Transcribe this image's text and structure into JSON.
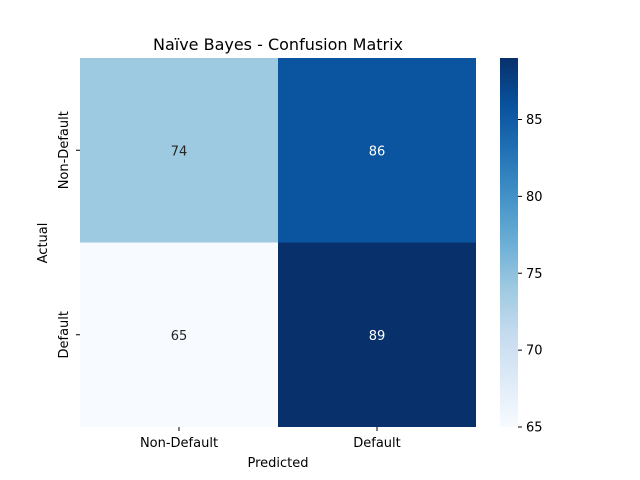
{
  "chart_data": {
    "type": "heatmap",
    "title": "Naïve Bayes - Confusion Matrix",
    "xlabel": "Predicted",
    "ylabel": "Actual",
    "x_categories": [
      "Non-Default",
      "Default"
    ],
    "y_categories": [
      "Non-Default",
      "Default"
    ],
    "values": [
      [
        74,
        86
      ],
      [
        65,
        89
      ]
    ],
    "colormap": "Blues",
    "colorbar": {
      "min": 65,
      "max": 89,
      "ticks": [
        65,
        70,
        75,
        80,
        85,
        90
      ]
    },
    "cell_colors": [
      [
        "#9dcae1",
        "#0a54a0"
      ],
      [
        "#f7fbff",
        "#08306b"
      ]
    ],
    "annotation_colors": [
      [
        "#262626",
        "#ffffff"
      ],
      [
        "#262626",
        "#ffffff"
      ]
    ]
  }
}
